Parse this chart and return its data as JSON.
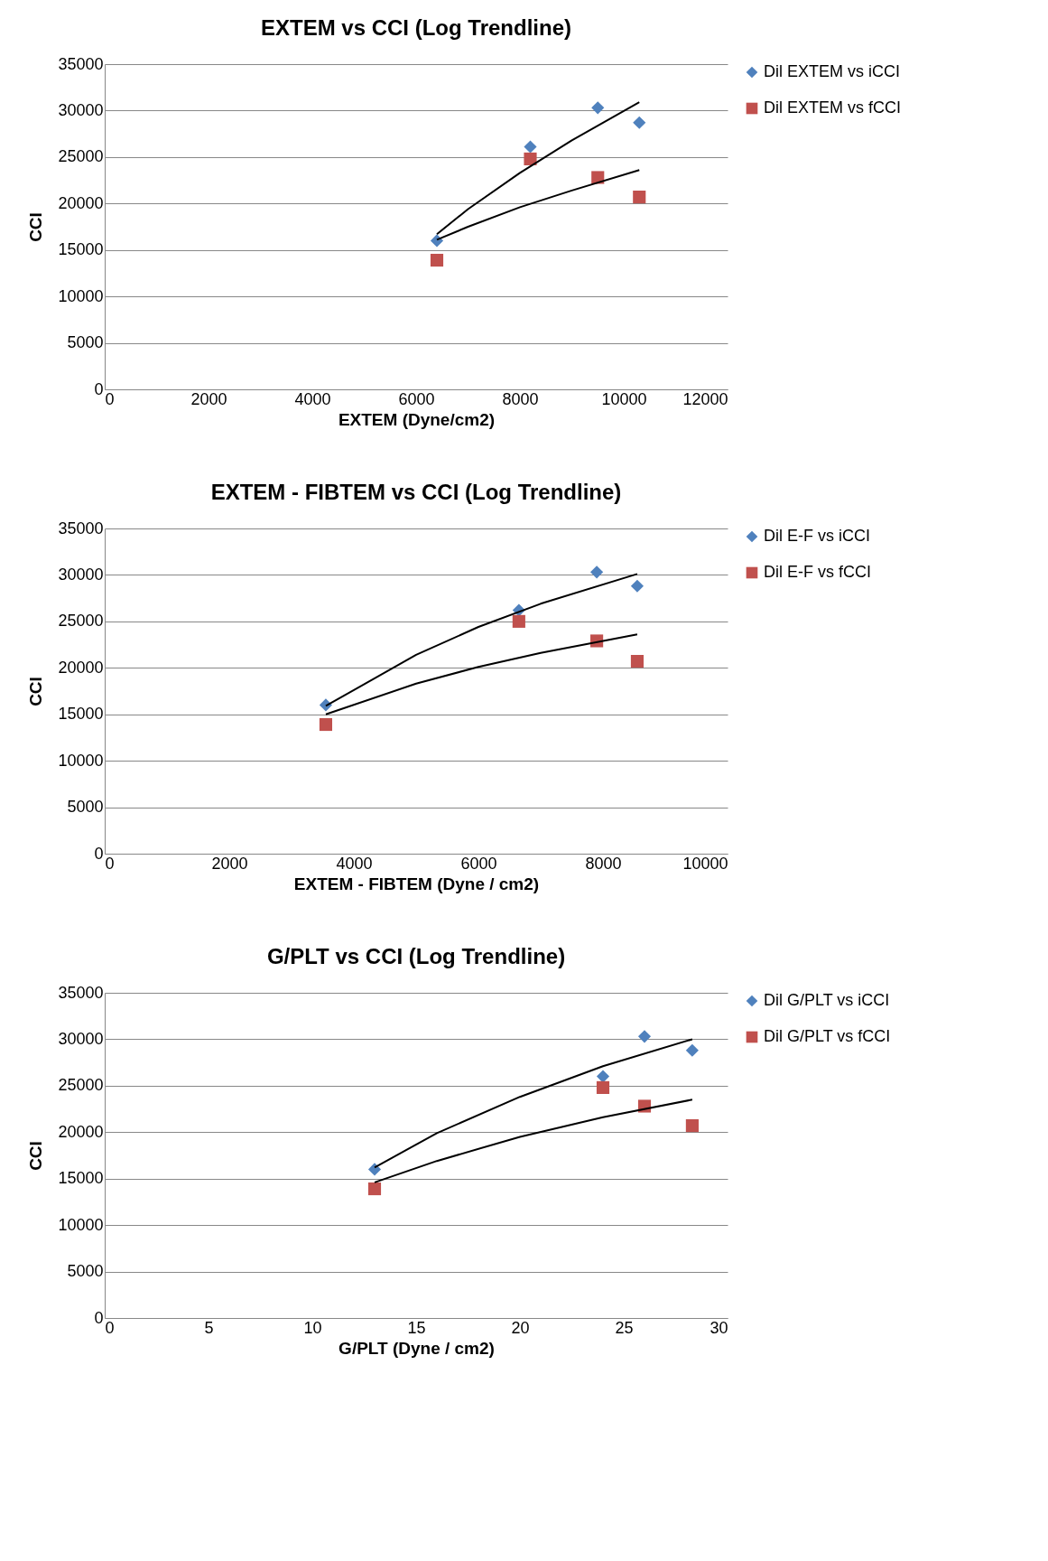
{
  "chart_data": [
    {
      "type": "scatter",
      "title": "EXTEM vs CCI (Log Trendline)",
      "xlabel": "EXTEM (Dyne/cm2)",
      "ylabel": "CCI",
      "xlim": [
        0,
        12000
      ],
      "xticks": [
        0,
        2000,
        4000,
        6000,
        8000,
        10000,
        12000
      ],
      "ylim": [
        0,
        35000
      ],
      "yticks": [
        0,
        5000,
        10000,
        15000,
        20000,
        25000,
        30000,
        35000
      ],
      "grid": "y",
      "legend": "right",
      "x": [
        6400,
        8200,
        9500,
        10300
      ],
      "series": [
        {
          "name": "Dil EXTEM vs iCCI",
          "color": "#4f81bd",
          "marker": "diamond",
          "values": [
            16000,
            26100,
            30300,
            28700
          ]
        },
        {
          "name": "Dil EXTEM vs fCCI",
          "color": "#c0504d",
          "marker": "square",
          "values": [
            13900,
            24800,
            22800,
            20700
          ]
        },
        {
          "type": "line",
          "color": "#000000",
          "x": [
            6400,
            7000,
            8000,
            9000,
            10300
          ],
          "values": [
            16700,
            19400,
            23300,
            26800,
            30900
          ]
        },
        {
          "type": "line",
          "color": "#000000",
          "x": [
            6400,
            7000,
            8000,
            9000,
            10300
          ],
          "values": [
            16100,
            17500,
            19600,
            21400,
            23600
          ]
        }
      ]
    },
    {
      "type": "scatter",
      "title": "EXTEM - FIBTEM vs CCI (Log Trendline)",
      "xlabel": "EXTEM - FIBTEM (Dyne / cm2)",
      "ylabel": "CCI",
      "xlim": [
        0,
        10000
      ],
      "xticks": [
        0,
        2000,
        4000,
        6000,
        8000,
        10000
      ],
      "ylim": [
        0,
        35000
      ],
      "yticks": [
        0,
        5000,
        10000,
        15000,
        20000,
        25000,
        30000,
        35000
      ],
      "grid": "y",
      "legend": "right",
      "x": [
        3550,
        6650,
        7900,
        8550
      ],
      "series": [
        {
          "name": "Dil E-F vs iCCI",
          "color": "#4f81bd",
          "marker": "diamond",
          "values": [
            16000,
            26200,
            30300,
            28800
          ]
        },
        {
          "name": "Dil E-F vs fCCI",
          "color": "#c0504d",
          "marker": "square",
          "values": [
            13900,
            25000,
            22900,
            20700
          ]
        },
        {
          "type": "line",
          "color": "#000000",
          "x": [
            3550,
            5000,
            6000,
            7000,
            8550
          ],
          "values": [
            15900,
            21400,
            24400,
            26900,
            30100
          ]
        },
        {
          "type": "line",
          "color": "#000000",
          "x": [
            3550,
            5000,
            6000,
            7000,
            8550
          ],
          "values": [
            15000,
            18300,
            20100,
            21600,
            23600
          ]
        }
      ]
    },
    {
      "type": "scatter",
      "title": "G/PLT vs CCI (Log Trendline)",
      "xlabel": "G/PLT (Dyne / cm2)",
      "ylabel": "CCI",
      "xlim": [
        0,
        30
      ],
      "xticks": [
        0,
        5,
        10,
        15,
        20,
        25,
        30
      ],
      "ylim": [
        0,
        35000
      ],
      "yticks": [
        0,
        5000,
        10000,
        15000,
        20000,
        25000,
        30000,
        35000
      ],
      "grid": "y",
      "legend": "right",
      "x": [
        13,
        24,
        26,
        28.3
      ],
      "series": [
        {
          "name": "Dil G/PLT vs iCCI",
          "color": "#4f81bd",
          "marker": "diamond",
          "values": [
            16000,
            26000,
            30300,
            28800
          ]
        },
        {
          "name": "Dil G/PLT vs fCCI",
          "color": "#c0504d",
          "marker": "square",
          "values": [
            13900,
            24800,
            22800,
            20700
          ]
        },
        {
          "type": "line",
          "color": "#000000",
          "x": [
            13,
            16,
            20,
            24,
            28.3
          ],
          "values": [
            16200,
            19900,
            23800,
            27100,
            30000
          ]
        },
        {
          "type": "line",
          "color": "#000000",
          "x": [
            13,
            16,
            20,
            24,
            28.3
          ],
          "values": [
            14600,
            16900,
            19500,
            21600,
            23500
          ]
        }
      ]
    }
  ]
}
